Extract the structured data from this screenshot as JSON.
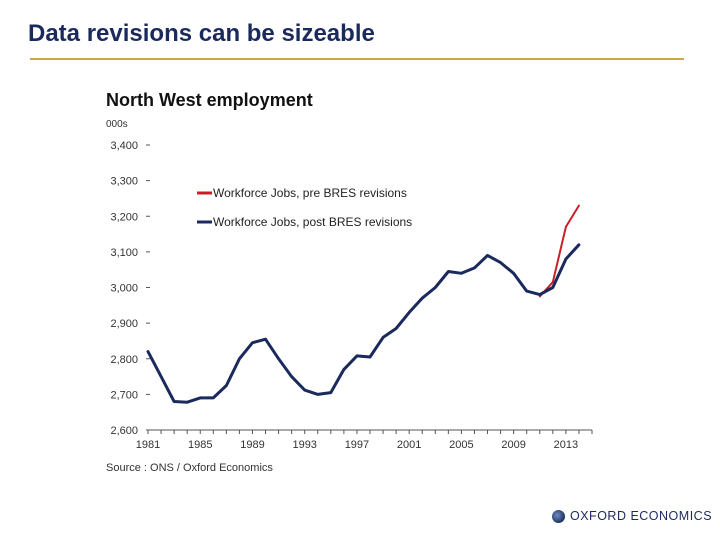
{
  "slide": {
    "title": "Data revisions can be sizeable",
    "logo_text": "OXFORD ECONOMICS"
  },
  "chart_data": {
    "type": "line",
    "title": "North West employment",
    "unit": "000s",
    "source": "Source : ONS / Oxford Economics",
    "xlim": [
      1981,
      2015
    ],
    "ylim": [
      2600,
      3400
    ],
    "x_ticks": [
      1981,
      1985,
      1989,
      1993,
      1997,
      2001,
      2005,
      2009,
      2013
    ],
    "x_tick_labels": [
      "1981",
      "1985",
      "1989",
      "1993",
      "1997",
      "2001",
      "2005",
      "2009",
      "2013"
    ],
    "y_ticks": [
      2600,
      2700,
      2800,
      2900,
      3000,
      3100,
      3200,
      3300,
      3400
    ],
    "y_tick_labels": [
      "2,600",
      "2,700",
      "2,800",
      "2,900",
      "3,000",
      "3,100",
      "3,200",
      "3,300",
      "3,400"
    ],
    "grid": false,
    "legend_position": "upper-left",
    "series": [
      {
        "name": "Workforce Jobs, pre BRES revisions",
        "color": "#c8202a",
        "x": [
          2011,
          2012,
          2013,
          2014
        ],
        "y": [
          2975,
          3015,
          3170,
          3230
        ]
      },
      {
        "name": "Workforce Jobs, post BRES revisions",
        "color": "#1b2a5c",
        "x": [
          1981,
          1982,
          1983,
          1984,
          1985,
          1986,
          1987,
          1988,
          1989,
          1990,
          1991,
          1992,
          1993,
          1994,
          1995,
          1996,
          1997,
          1998,
          1999,
          2000,
          2001,
          2002,
          2003,
          2004,
          2005,
          2006,
          2007,
          2008,
          2009,
          2010,
          2011,
          2012,
          2013,
          2014
        ],
        "y": [
          2820,
          2750,
          2680,
          2678,
          2690,
          2690,
          2725,
          2800,
          2845,
          2855,
          2800,
          2750,
          2712,
          2700,
          2705,
          2770,
          2808,
          2805,
          2860,
          2885,
          2930,
          2970,
          3000,
          3045,
          3040,
          3055,
          3090,
          3070,
          3040,
          2990,
          2980,
          3000,
          3080,
          3120
        ]
      }
    ]
  }
}
